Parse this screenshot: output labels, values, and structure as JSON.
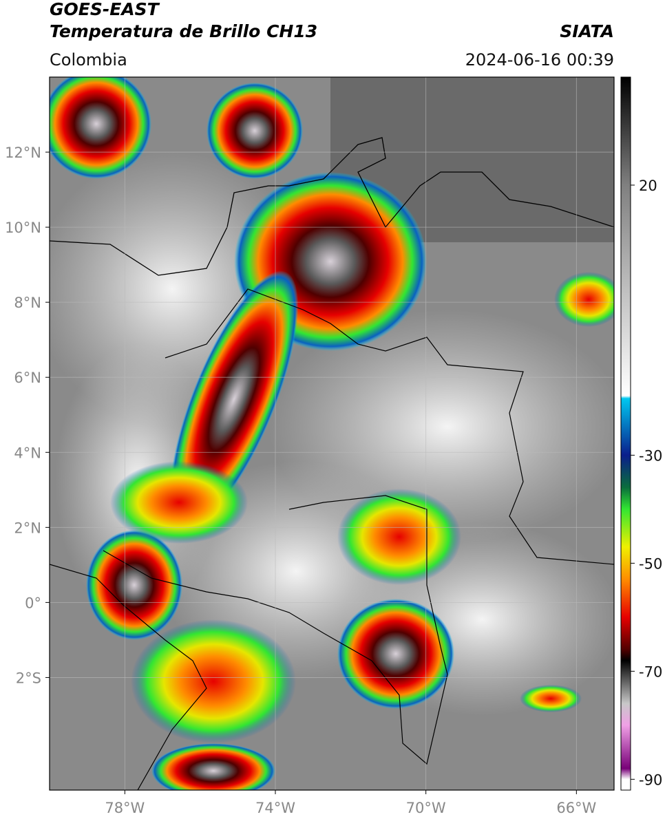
{
  "header": {
    "satellite": "GOES-EAST",
    "product": "Temperatura de Brillo CH13",
    "region": "Colombia",
    "source": "SIATA",
    "datetime": "2024-06-16 00:39"
  },
  "map": {
    "xlim": [
      -80,
      -65
    ],
    "ylim": [
      -5,
      14
    ],
    "xticks": [
      {
        "value": -78,
        "label": "78°W"
      },
      {
        "value": -74,
        "label": "74°W"
      },
      {
        "value": -70,
        "label": "70°W"
      },
      {
        "value": -66,
        "label": "66°W"
      }
    ],
    "yticks": [
      {
        "value": 12,
        "label": "12°N"
      },
      {
        "value": 10,
        "label": "10°N"
      },
      {
        "value": 8,
        "label": "8°N"
      },
      {
        "value": 6,
        "label": "6°N"
      },
      {
        "value": 4,
        "label": "4°N"
      },
      {
        "value": 2,
        "label": "2°N"
      },
      {
        "value": 0,
        "label": "0°"
      },
      {
        "value": -2,
        "label": "2°S"
      }
    ],
    "grid": true
  },
  "colorbar": {
    "lim": [
      -92,
      40
    ],
    "ticks": [
      20,
      -30,
      -50,
      -70,
      -90
    ],
    "colormap": [
      {
        "value": 40,
        "color": "#000000"
      },
      {
        "value": 20,
        "color": "#808080"
      },
      {
        "value": -19,
        "color": "#ffffff"
      },
      {
        "value": -19.5,
        "color": "#00c8f0"
      },
      {
        "value": -30,
        "color": "#0a1e8c"
      },
      {
        "value": -36,
        "color": "#0a6e3c"
      },
      {
        "value": -40,
        "color": "#32e632"
      },
      {
        "value": -47,
        "color": "#f0f000"
      },
      {
        "value": -53,
        "color": "#ff8c00"
      },
      {
        "value": -60,
        "color": "#e60000"
      },
      {
        "value": -66,
        "color": "#500000"
      },
      {
        "value": -68,
        "color": "#000000"
      },
      {
        "value": -76,
        "color": "#c8c8c8"
      },
      {
        "value": -80,
        "color": "#f0a0e6"
      },
      {
        "value": -88,
        "color": "#780078"
      },
      {
        "value": -90,
        "color": "#ffffff"
      },
      {
        "value": -92,
        "color": "#ffffff"
      }
    ]
  }
}
